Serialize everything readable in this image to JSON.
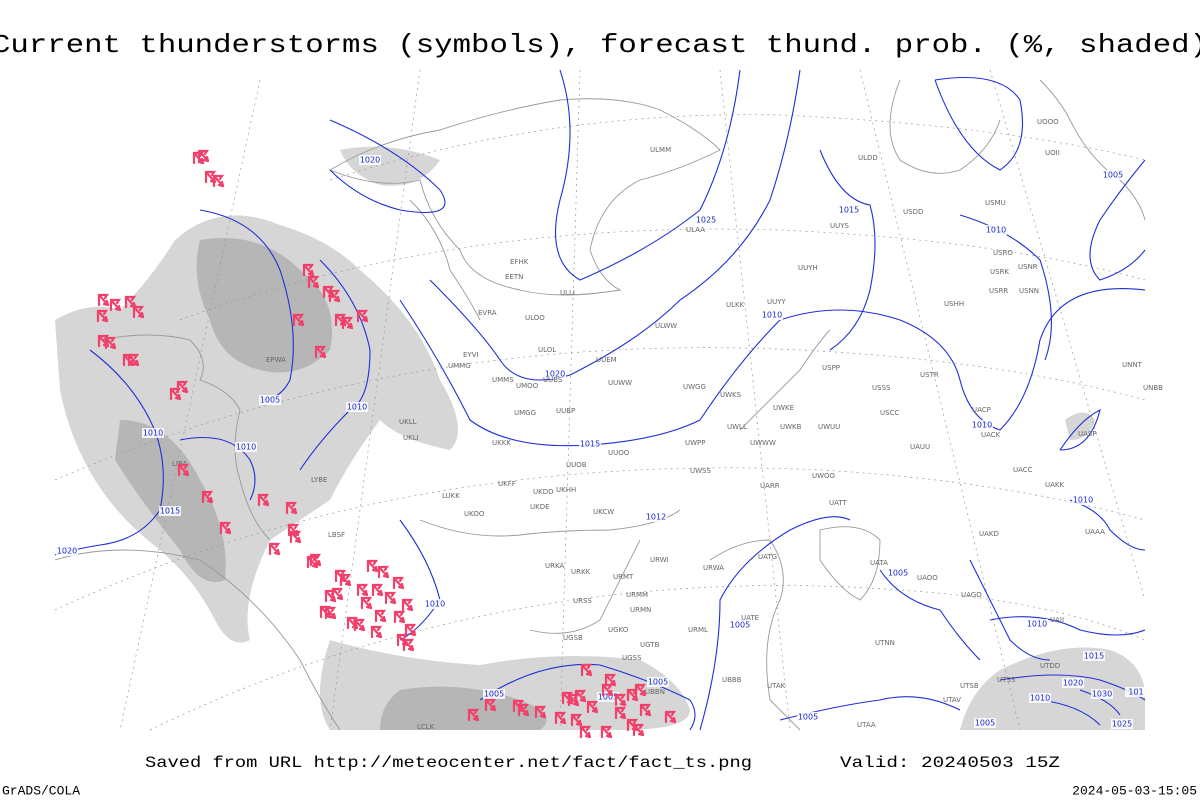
{
  "title": "Current thunderstorms (symbols), forecast thund. prob. (%, shaded)",
  "isobar_labels": [
    1020,
    1025,
    1010,
    1020,
    1015,
    1012,
    1010,
    1005,
    1010,
    1010,
    1015,
    1020,
    1010,
    1005,
    1005,
    1005,
    1005,
    1005,
    1005,
    1015,
    1010,
    1005,
    1010,
    1010,
    1010,
    1015,
    1020,
    1030,
    101,
    1025,
    1005,
    1010
  ],
  "station_labels": [
    "ULMM",
    "ULAA",
    "EFHK",
    "EETN",
    "ULLI",
    "EVRA",
    "ULOO",
    "ULOL",
    "UUEM",
    "ULWW",
    "UMMS",
    "UMOO",
    "UUBS",
    "UUWW",
    "UMGG",
    "UUBP",
    "UKKK",
    "UUOB",
    "UUOO",
    "UKHH",
    "UKDD",
    "UKFF",
    "UKOO",
    "UKDE",
    "UKCW",
    "UUYY",
    "ULKK",
    "UUYH",
    "UUYS",
    "ULDD",
    "USDD",
    "USMU",
    "USRO",
    "USRK",
    "USRR",
    "USNR",
    "USNN",
    "USHH",
    "USPP",
    "USSS",
    "USTR",
    "USCC",
    "UWKE",
    "UWKB",
    "UWUU",
    "UWWW",
    "UWPP",
    "UWGG",
    "UWKS",
    "UWLL",
    "UWSS",
    "URWA",
    "URWI",
    "UATG",
    "URMT",
    "URMM",
    "URMN",
    "URSS",
    "UGKO",
    "UGTB",
    "UGSB",
    "UGSS",
    "UBBB",
    "UTAK",
    "UTAA",
    "URML",
    "UATE",
    "UATT",
    "UARR",
    "UWOO",
    "LIRA",
    "LYBE",
    "LBSF",
    "EPWA",
    "EYVI",
    "UMMG",
    "UKLL",
    "UKLI",
    "LUKK",
    "URKK",
    "URKA",
    "UACC",
    "UAKK",
    "UAKD",
    "UAII",
    "UAAA",
    "UACP",
    "UACK",
    "UAUU",
    "UASP",
    "UATA",
    "UAOO",
    "UAGO",
    "UTNN",
    "UTDD",
    "UTSS",
    "UTSB",
    "UTAV",
    "UNBB",
    "UNNT",
    "UOOO",
    "UOII",
    "LCLK",
    "UBBN"
  ],
  "footer": {
    "source": "Saved from URL http://meteocenter.net/fact/fact_ts.png",
    "valid": "Valid: 20240503 15Z",
    "software": "GrADS/COLA",
    "timestamp": "2024-05-03-15:05"
  }
}
